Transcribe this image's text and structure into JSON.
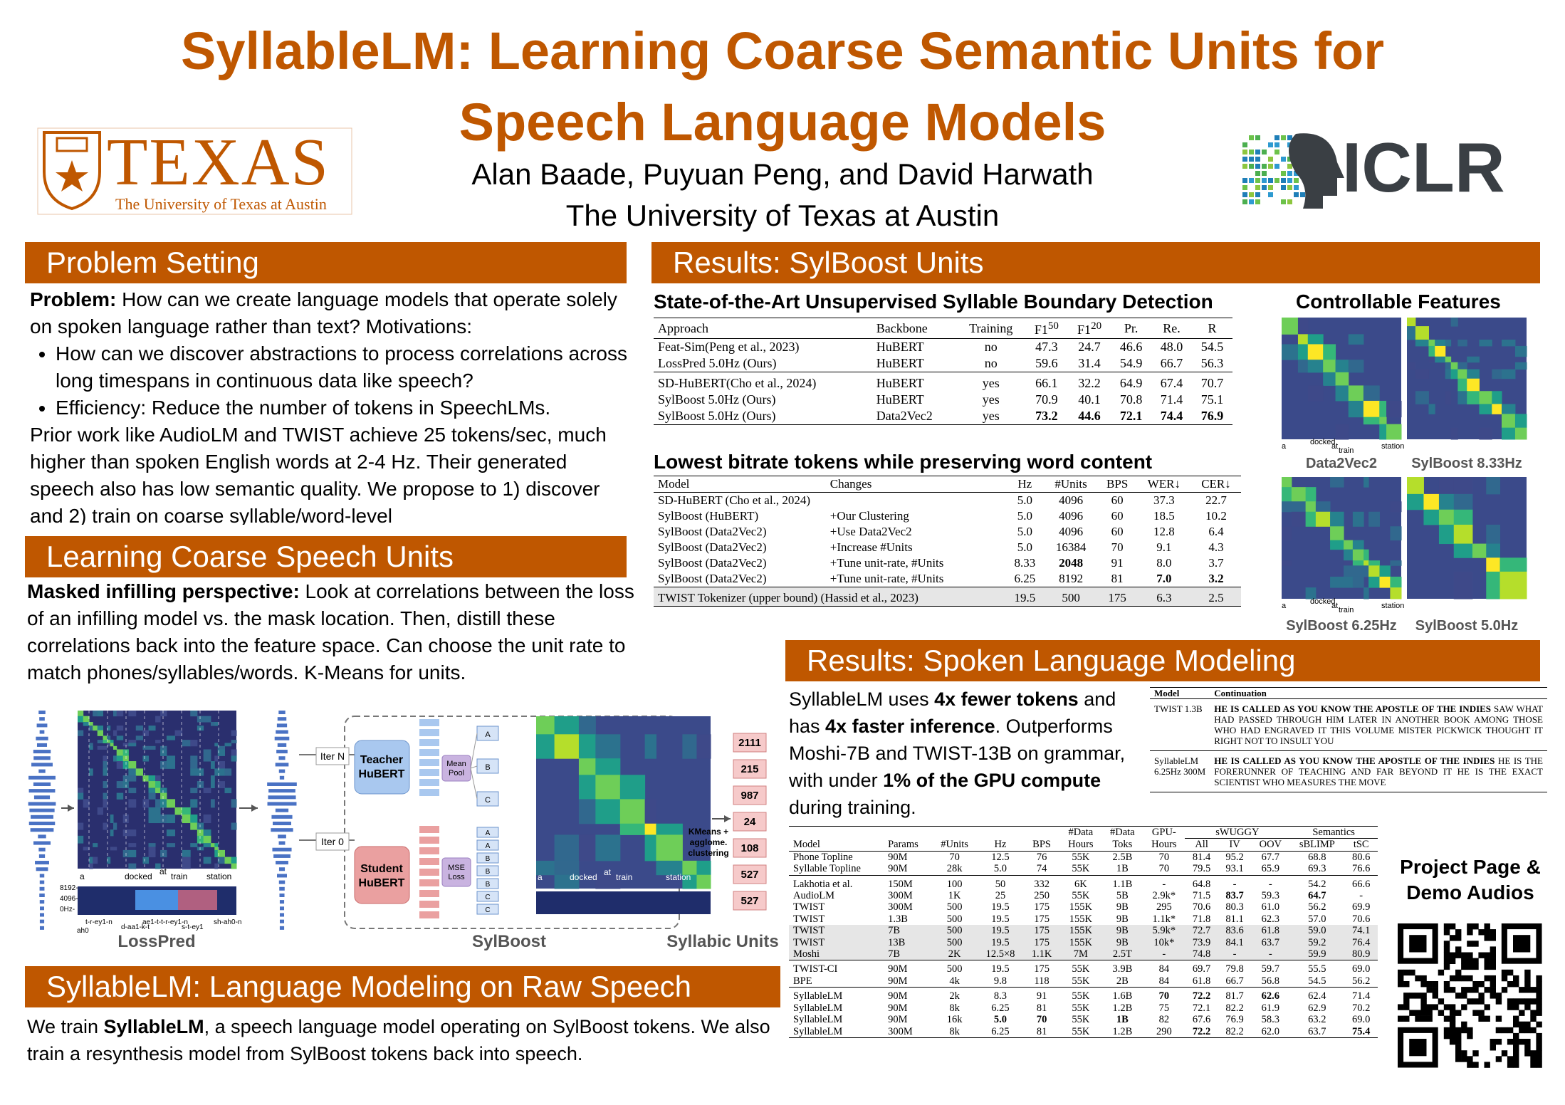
{
  "header": {
    "title_line1": "SyllableLM: Learning Coarse Semantic Units for",
    "title_line2": "Speech Language Models",
    "authors": "Alan Baade, Puyuan Peng, and David Harwath",
    "affiliation": "The University of Texas at Austin",
    "texas_wordmark": "TEXAS",
    "texas_subtitle": "The University of Texas at Austin",
    "conference": "ICLR"
  },
  "problem": {
    "heading": "Problem Setting",
    "intro": [
      {
        "t": "Problem:",
        "b": true
      },
      {
        "t": " How can we create language models that operate solely on spoken language rather than text? Motivations:"
      }
    ],
    "bullets": [
      "How can we discover abstractions to process correlations across long timespans in continuous data like speech?",
      "Efficiency: Reduce the number of tokens in SpeechLMs."
    ],
    "body": "Prior work like AudioLM and TWIST achieve 25 tokens/sec, much higher than spoken English words at 2-4 Hz. Their generated speech also has low semantic quality. We propose to 1) discover and 2) train on coarse syllable/word-level"
  },
  "units": {
    "heading": "Learning Coarse Speech Units",
    "text": [
      {
        "t": "Masked infilling perspective:",
        "b": true
      },
      {
        "t": "  Look at correlations between the loss of an infilling model vs. the mask location. Then, distill these correlations back into the feature space. Can choose the unit rate to match phones/syllables/words. K-Means for units."
      }
    ]
  },
  "figure": {
    "captions": [
      "LossPred",
      "SylBoost",
      "Syllabic Units"
    ],
    "iter_n": "Iter N",
    "iter_0": "Iter 0",
    "teacher": [
      "Teacher",
      "HuBERT"
    ],
    "student": [
      "Student",
      "HuBERT"
    ],
    "mean_pool": [
      "Mean",
      "Pool"
    ],
    "mse_loss": [
      "MSE",
      "Loss"
    ],
    "clustering": [
      "KMeans +",
      "agglome.",
      "clustering"
    ],
    "letters_top": [
      "A",
      "B",
      "C"
    ],
    "letters_bottom": [
      "A",
      "A",
      "B",
      "B",
      "B",
      "C",
      "C"
    ],
    "units": [
      "2111",
      "215",
      "987",
      "24",
      "108",
      "527",
      "527"
    ],
    "words": [
      "a",
      "docked",
      "at",
      "train",
      "station"
    ],
    "freq_ticks": [
      "8192-",
      "4096-",
      "0Hz-"
    ],
    "phones": [
      "t-r-ey1-n",
      "d-aa1-k-t",
      "ah0",
      "ae1-t-t-r-ey1-n",
      "s-t-ey1",
      "sh-ah0-n"
    ]
  },
  "lm": {
    "heading": "SyllableLM: Language Modeling on Raw Speech",
    "text": [
      {
        "t": "We train "
      },
      {
        "t": "SyllableLM",
        "b": true
      },
      {
        "t": ", a speech language model operating on SylBoost tokens. We also train a resynthesis model from SylBoost tokens back into speech."
      }
    ]
  },
  "results_units": {
    "heading": "Results: SylBoost Units",
    "table1": {
      "title": "State-of-the-Art Unsupervised Syllable Boundary Detection",
      "columns": [
        "Approach",
        "Backbone",
        "Training",
        {
          "text": "F1",
          "sup": "50"
        },
        {
          "text": "F1",
          "sup": "20"
        },
        "Pr.",
        "Re.",
        "R"
      ],
      "groups": [
        [
          [
            "Feat-Sim(Peng et al., 2023)",
            "HuBERT",
            "no",
            "47.3",
            "24.7",
            "46.6",
            "48.0",
            "54.5"
          ],
          [
            "LossPred 5.0Hz (Ours)",
            "HuBERT",
            "no",
            "59.6",
            "31.4",
            "54.9",
            "66.7",
            "56.3"
          ]
        ],
        [
          [
            "SD-HuBERT(Cho et al., 2024)",
            "HuBERT",
            "yes",
            "66.1",
            "32.2",
            "64.9",
            "67.4",
            "70.7"
          ],
          [
            "SylBoost 5.0Hz (Ours)",
            "HuBERT",
            "yes",
            "70.9",
            "40.1",
            "70.8",
            "71.4",
            "75.1"
          ],
          [
            "SylBoost 5.0Hz (Ours)",
            "Data2Vec2",
            "yes",
            "73.2",
            "44.6",
            "72.1",
            "74.4",
            "76.9"
          ]
        ]
      ],
      "bold": [
        [
          1,
          2,
          3
        ],
        [
          1,
          2,
          4
        ],
        [
          1,
          2,
          5
        ],
        [
          1,
          2,
          6
        ],
        [
          1,
          2,
          7
        ]
      ]
    },
    "table2": {
      "title": "Lowest bitrate tokens while preserving word content",
      "columns": [
        "Model",
        "Changes",
        "Hz",
        "#Units",
        "BPS",
        "WER↓",
        "CER↓"
      ],
      "groups": [
        [
          [
            "SD-HuBERT (Cho et al., 2024)",
            null,
            "5.0",
            "4096",
            "60",
            "37.3",
            "22.7"
          ],
          [
            "SylBoost (HuBERT)",
            "+Our Clustering",
            "5.0",
            "4096",
            "60",
            "18.5",
            "10.2"
          ],
          [
            "SylBoost (Data2Vec2)",
            "+Use Data2Vec2",
            "5.0",
            "4096",
            "60",
            "12.8",
            "6.4"
          ],
          [
            "SylBoost (Data2Vec2)",
            "+Increase #Units",
            "5.0",
            "16384",
            "70",
            "9.1",
            "4.3"
          ],
          [
            "SylBoost (Data2Vec2)",
            "+Tune unit-rate, #Units",
            "8.33",
            "2048",
            "91",
            "8.0",
            "3.7"
          ],
          [
            "SylBoost (Data2Vec2)",
            "+Tune unit-rate, #Units",
            "6.25",
            "8192",
            "81",
            "7.0",
            "3.2"
          ]
        ],
        [
          [
            "TWIST Tokenizer (upper bound) (Hassid et al., 2023)",
            null,
            "19.5",
            "500",
            "175",
            "6.3",
            "2.5"
          ]
        ]
      ],
      "bold": [
        [
          0,
          4,
          3
        ],
        [
          0,
          5,
          5
        ],
        [
          0,
          5,
          6
        ]
      ],
      "shaded": [
        [
          1,
          0
        ]
      ]
    },
    "features": {
      "title": "Controllable Features",
      "captions": [
        "Data2Vec2",
        "SylBoost 8.33Hz",
        "SylBoost 6.25Hz",
        "SylBoost 5.0Hz"
      ]
    }
  },
  "results_lm": {
    "heading": "Results: Spoken Language Modeling",
    "text": [
      {
        "t": "SyllableLM uses "
      },
      {
        "t": "4x fewer tokens",
        "b": true
      },
      {
        "t": " and has "
      },
      {
        "t": "4x faster inference",
        "b": true
      },
      {
        "t": ". Outperforms Moshi-7B and TWIST-13B on grammar, with under "
      },
      {
        "t": "1% of the GPU compute",
        "b": true
      },
      {
        "t": " during training."
      }
    ],
    "continuation": {
      "columns": [
        "Model",
        "Continuation"
      ],
      "rows": [
        {
          "model": [
            "TWIST 1.3B"
          ],
          "prompt": "HE IS CALLED AS YOU KNOW THE APOSTLE OF THE INDIES",
          "text": " SAW WHAT HAD PASSED THROUGH HIM LATER IN ANOTHER BOOK AMONG THOSE WHO HAD ENGRAVED IT THIS VOLUME MISTER PICKWICK THOUGHT IT RIGHT NOT TO INSULT YOU"
        },
        {
          "model": [
            "SyllableLM",
            "6.25Hz 300M"
          ],
          "prompt": "HE IS CALLED AS YOU KNOW THE APOSTLE OF THE INDIES",
          "text": " HE IS THE FORERUNNER OF TEACHING AND FAR BEYOND IT HE IS THE EXACT SCIENTIST WHO MEASURES THE MOVE"
        }
      ]
    },
    "table": {
      "header_top": [
        null,
        null,
        null,
        null,
        null,
        "#Data",
        "#Data",
        "GPU-",
        "sWUGGY",
        null,
        null,
        "Semantics",
        null
      ],
      "columns": [
        "Model",
        "Params",
        "#Units",
        "Hz",
        "BPS",
        "Hours",
        "Toks",
        "Hours",
        "All",
        "IV",
        "OOV",
        "sBLIMP",
        "tSC"
      ],
      "groups": [
        [
          [
            "Phone Topline",
            "90M",
            "70",
            "12.5",
            "76",
            "55K",
            "2.5B",
            "70",
            "81.4",
            "95.2",
            "67.7",
            "68.8",
            "80.6"
          ],
          [
            "Syllable Topline",
            "90M",
            "28k",
            "5.0",
            "74",
            "55K",
            "1B",
            "70",
            "79.5",
            "93.1",
            "65.9",
            "69.3",
            "76.6"
          ]
        ],
        [
          [
            "Lakhotia et al.",
            "150M",
            "100",
            "50",
            "332",
            "6K",
            "1.1B",
            "-",
            "64.8",
            "-",
            "-",
            "54.2",
            "66.6"
          ],
          [
            "AudioLM",
            "300M",
            "1K",
            "25",
            "250",
            "55K",
            "5B",
            "2.9k*",
            "71.5",
            "83.7",
            "59.3",
            "64.7",
            "-"
          ],
          [
            "TWIST",
            "300M",
            "500",
            "19.5",
            "175",
            "155K",
            "9B",
            "295",
            "70.6",
            "80.3",
            "61.0",
            "56.2",
            "69.9"
          ],
          [
            "TWIST",
            "1.3B",
            "500",
            "19.5",
            "175",
            "155K",
            "9B",
            "1.1k*",
            "71.8",
            "81.1",
            "62.3",
            "57.0",
            "70.6"
          ],
          [
            "TWIST",
            "7B",
            "500",
            "19.5",
            "175",
            "155K",
            "9B",
            "5.9k*",
            "72.7",
            "83.6",
            "61.8",
            "59.0",
            "74.1"
          ],
          [
            "TWIST",
            "13B",
            "500",
            "19.5",
            "175",
            "155K",
            "9B",
            "10k*",
            "73.9",
            "84.1",
            "63.7",
            "59.2",
            "76.4"
          ],
          [
            "Moshi",
            "7B",
            "2K",
            "12.5×8",
            "1.1K",
            "7M",
            "2.5T",
            "-",
            "74.8",
            "-",
            "-",
            "59.9",
            "80.9"
          ]
        ],
        [
          [
            "TWIST-CI",
            "90M",
            "500",
            "19.5",
            "175",
            "55K",
            "3.9B",
            "84",
            "69.7",
            "79.8",
            "59.7",
            "55.5",
            "69.0"
          ],
          [
            "BPE",
            "90M",
            "4k",
            "9.8",
            "118",
            "55K",
            "2B",
            "84",
            "61.8",
            "66.7",
            "56.8",
            "54.5",
            "56.2"
          ]
        ],
        [
          [
            "SyllableLM",
            "90M",
            "2k",
            "8.3",
            "91",
            "55K",
            "1.6B",
            "70",
            "72.2",
            "81.7",
            "62.6",
            "62.4",
            "71.4"
          ],
          [
            "SyllableLM",
            "90M",
            "8k",
            "6.25",
            "81",
            "55K",
            "1.2B",
            "75",
            "72.1",
            "82.2",
            "61.9",
            "62.9",
            "70.2"
          ],
          [
            "SyllableLM",
            "90M",
            "16k",
            "5.0",
            "70",
            "55K",
            "1B",
            "82",
            "67.6",
            "76.9",
            "58.3",
            "63.2",
            "69.0"
          ],
          [
            "SyllableLM",
            "300M",
            "8k",
            "6.25",
            "81",
            "55K",
            "1.2B",
            "290",
            "72.2",
            "82.2",
            "62.0",
            "63.7",
            "75.4"
          ]
        ]
      ],
      "bold": [
        [
          1,
          1,
          9
        ],
        [
          1,
          1,
          11
        ],
        [
          3,
          0,
          7
        ],
        [
          3,
          0,
          8
        ],
        [
          3,
          0,
          10
        ],
        [
          3,
          2,
          3
        ],
        [
          3,
          2,
          4
        ],
        [
          3,
          2,
          6
        ],
        [
          3,
          3,
          8
        ],
        [
          3,
          3,
          12
        ]
      ],
      "shaded": [
        [
          1,
          4
        ],
        [
          1,
          5
        ],
        [
          1,
          6
        ]
      ]
    },
    "project": "Project Page & Demo Audios"
  }
}
